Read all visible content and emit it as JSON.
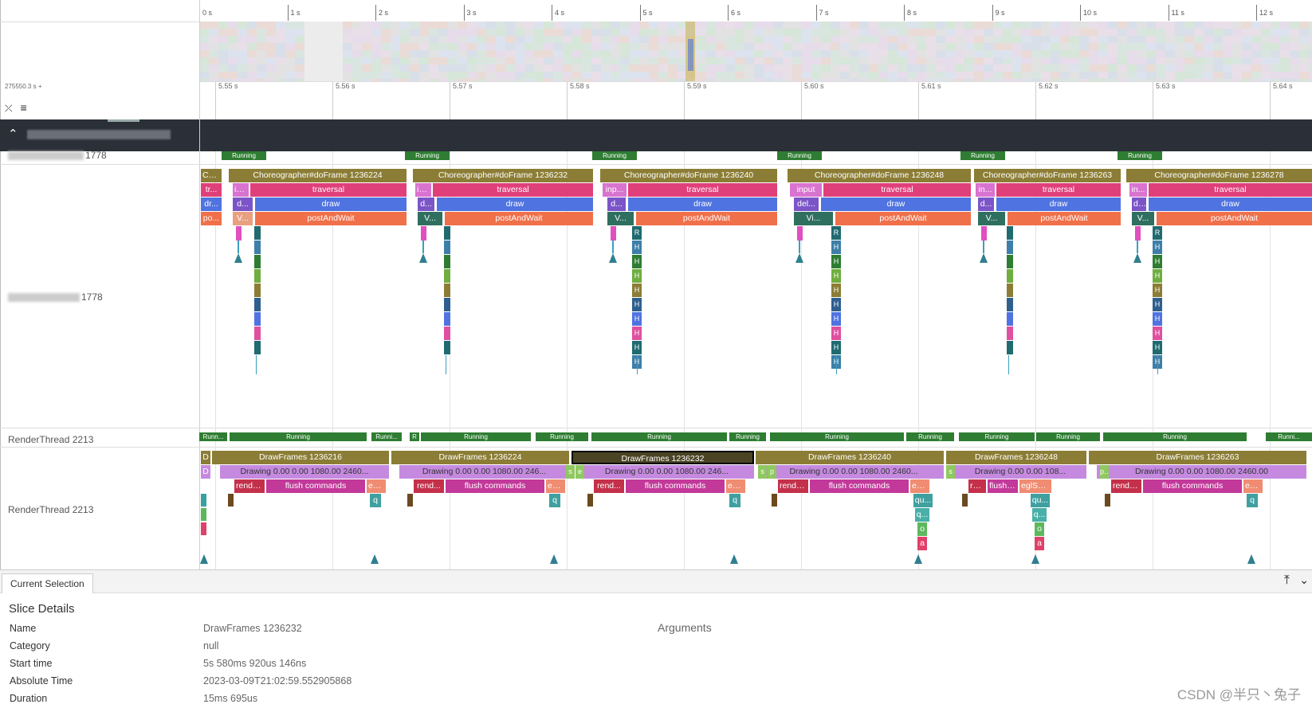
{
  "overview_ticks": [
    "0 s",
    "1 s",
    "2 s",
    "3 s",
    "4 s",
    "5 s",
    "6 s",
    "7 s",
    "8 s",
    "9 s",
    "10 s",
    "11 s",
    "12 s"
  ],
  "time_offset": "275550.3 s +",
  "ruler_ticks": [
    "5.55 s",
    "5.56 s",
    "5.57 s",
    "5.58 s",
    "5.59 s",
    "5.60 s",
    "5.61 s",
    "5.62 s",
    "5.63 s",
    "5.64 s"
  ],
  "icons": {
    "collapse_all": "collapse-all-icon",
    "details": "lines-icon",
    "group_toggle": "chevron-up-icon",
    "pin": "pin-top-icon",
    "chevron": "chevron-down-icon"
  },
  "tracks": {
    "main_state_label_suffix": "1778",
    "main_slices_label_suffix": "1778",
    "render_state_label": "RenderThread 2213",
    "render_slices_label": "RenderThread 2213"
  },
  "main_running": [
    "Running",
    "Running",
    "Running",
    "Running",
    "Running",
    "Running"
  ],
  "main_frames": [
    {
      "d0": "Ch...",
      "d1": "tr...",
      "d2": "dr...",
      "d3": "po..."
    },
    {
      "root": "Choreographer#doFrame 1236224",
      "a": "in...",
      "b": "traversal",
      "c": "d...",
      "d": "draw",
      "e": "V...",
      "f": "postAndWait"
    },
    {
      "root": "Choreographer#doFrame 1236232",
      "a": "in...",
      "b": "traversal",
      "c": "d...",
      "d": "draw",
      "e": "V...",
      "f": "postAndWait"
    },
    {
      "root": "Choreographer#doFrame 1236240",
      "a": "inp...",
      "b": "traversal",
      "c": "d...",
      "d": "draw",
      "e": "V...",
      "f": "postAndWait",
      "r": "R",
      "h": "H"
    },
    {
      "root": "Choreographer#doFrame 1236248",
      "a": "input",
      "b": "traversal",
      "c": "del...",
      "d": "draw",
      "e": "Vi...",
      "f": "postAndWait",
      "r": "R",
      "h": "H"
    },
    {
      "root": "Choreographer#doFrame 1236263",
      "a": "in...",
      "b": "traversal",
      "c": "d...",
      "d": "draw",
      "e": "V...",
      "f": "postAndWait"
    },
    {
      "root": "Choreographer#doFrame 1236278",
      "a": "in...",
      "b": "traversal",
      "c": "d...",
      "d": "draw",
      "e": "V...",
      "f": "postAndWait",
      "r": "R",
      "h": "H"
    }
  ],
  "render_running": [
    "Runn...",
    "Running",
    "Runni...",
    "R",
    "Running",
    "Running",
    "Running",
    "Running",
    "Running",
    "Running",
    "Running",
    "Running",
    "Running",
    "Runni..."
  ],
  "render_frames": [
    {
      "root": "DrawFrames 1236216",
      "drawing": "Drawing  0.00  0.00 1080.00 2460...",
      "c": "rende...",
      "d": "flush commands",
      "e": "eg...",
      "f": "q"
    },
    {
      "root": "DrawFrames 1236224",
      "drawing": "Drawing  0.00  0.00 1080.00 246...",
      "c": "rend...",
      "d": "flush commands",
      "e": "eglS...",
      "f": "q"
    },
    {
      "root": "DrawFrames 1236232",
      "drawing": "Drawing  0.00  0.00 1080.00 246...",
      "c": "rend...",
      "d": "flush commands",
      "e": "eg...",
      "f": "q"
    },
    {
      "root": "DrawFrames 1236240",
      "drawing": "Drawing  0.00  0.00 1080.00 2460...",
      "c": "rende...",
      "d": "flush commands",
      "e": "eglS...",
      "f": "qu...",
      "g": "q...",
      "h": "o",
      "i": "a"
    },
    {
      "root": "DrawFrames 1236248",
      "drawing": "Drawing  0.00  0.00 108...",
      "c": "re...",
      "d": "flush c...",
      "e": "eglSw...",
      "f": "qu...",
      "g": "q...",
      "h": "o",
      "i": "a"
    },
    {
      "root": "DrawFrames 1236263",
      "drawing": "Drawing  0.00  0.00 1080.00 2460.00",
      "c": "rende...",
      "d": "flush commands",
      "e": "eg...",
      "f": "q"
    }
  ],
  "render_small": {
    "d": "D",
    "d2": "D",
    "s": "s",
    "e": "e",
    "p": "p",
    "s2": "s...",
    "p2": "p..."
  },
  "selection": {
    "tab": "Current Selection",
    "title": "Slice Details",
    "keys": [
      "Name",
      "Category",
      "Start time",
      "Absolute Time",
      "Duration"
    ],
    "values": [
      "DrawFrames 1236232",
      "null",
      "5s 580ms 920us 146ns",
      "2023-03-09T21:02:59.552905868",
      "15ms 695us"
    ],
    "arguments_title": "Arguments"
  },
  "watermark": "CSDN @半只丶兔子",
  "colors": {
    "olive": "#8b7d35",
    "pink": "#e0407a",
    "blue": "#4f73e0",
    "orange": "#f0704a",
    "running": "#2e7d32",
    "lavender": "#c58ae0",
    "magenta": "#c2399a",
    "salmon": "#f08c72",
    "teal": "#2f7f8f",
    "selected_border": "#000"
  }
}
